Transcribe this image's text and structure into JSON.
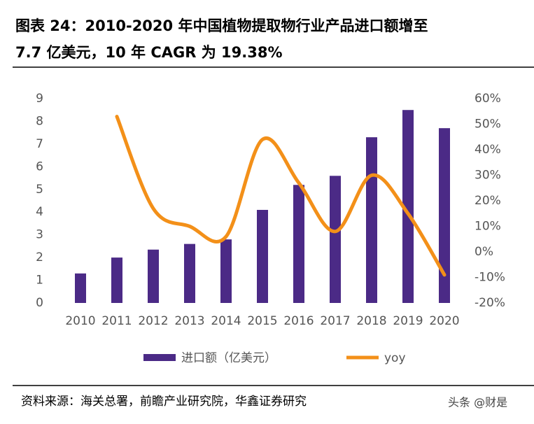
{
  "title": [
    "图表 24：2010-2020 年中国植物提取物行业产品进口额增至",
    "7.7 亿美元，10 年 CAGR 为 19.38%"
  ],
  "chart_data": {
    "type": "bar_line",
    "categories": [
      "2010",
      "2011",
      "2012",
      "2013",
      "2014",
      "2015",
      "2016",
      "2017",
      "2018",
      "2019",
      "2020"
    ],
    "series": [
      {
        "name": "进口额（亿美元）",
        "type": "bar",
        "color": "#4b2a86",
        "values": [
          1.3,
          2.0,
          2.35,
          2.6,
          2.8,
          4.1,
          5.2,
          5.6,
          7.3,
          8.5,
          7.7
        ]
      },
      {
        "name": "yoy",
        "type": "line",
        "axis": "y2",
        "color": "#f39019",
        "values": [
          null,
          53,
          17,
          10,
          6,
          44,
          27,
          8,
          30,
          15,
          -9
        ]
      }
    ],
    "ylim": [
      0,
      9
    ],
    "yticks": [
      0,
      1,
      2,
      3,
      4,
      5,
      6,
      7,
      8,
      9
    ],
    "y2lim": [
      -20,
      60
    ],
    "y2ticks": [
      {
        "value": -20,
        "label": "-20%"
      },
      {
        "value": -10,
        "label": "-10%"
      },
      {
        "value": 0,
        "label": "0%"
      },
      {
        "value": 10,
        "label": "10%"
      },
      {
        "value": 20,
        "label": "20%"
      },
      {
        "value": 30,
        "label": "30%"
      },
      {
        "value": 40,
        "label": "40%"
      },
      {
        "value": 50,
        "label": "50%"
      },
      {
        "value": 60,
        "label": "60%"
      }
    ],
    "legend": "bottom"
  },
  "source": "资料来源：海关总署，前瞻产业研究院，华鑫证券研究",
  "watermark": "头条 @财是"
}
